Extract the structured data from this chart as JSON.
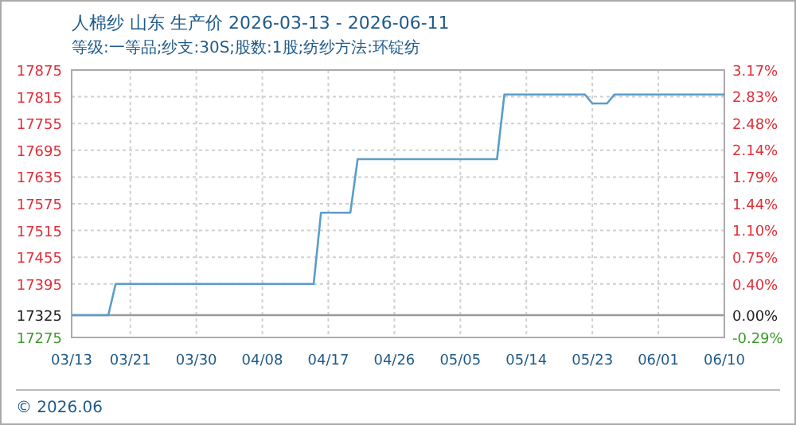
{
  "chart_data": {
    "type": "line",
    "title": "人棉纱 山东 生产价 2026-03-13 - 2026-06-11",
    "subtitle": "等级:一等品;纱支:30S;股数:1股;纺纱方法:环锭纺",
    "x": [
      "2026-03-13",
      "2026-03-18",
      "2026-03-19",
      "2026-04-15",
      "2026-04-16",
      "2026-04-20",
      "2026-04-21",
      "2026-05-10",
      "2026-05-11",
      "2026-05-22",
      "2026-05-23",
      "2026-05-25",
      "2026-05-26",
      "2026-06-10"
    ],
    "series": [
      {
        "color": "#5b9dc9",
        "values": [
          17325,
          17325,
          17395,
          17395,
          17555,
          17555,
          17675,
          17675,
          17820,
          17820,
          17800,
          17800,
          17820,
          17820
        ]
      }
    ],
    "xlim": [
      "2026-03-13",
      "2026-06-10"
    ],
    "xticks": [
      {
        "value": "2026-03-13",
        "label": "03/13"
      },
      {
        "value": "2026-03-21",
        "label": "03/21"
      },
      {
        "value": "2026-03-30",
        "label": "03/30"
      },
      {
        "value": "2026-04-08",
        "label": "04/08"
      },
      {
        "value": "2026-04-17",
        "label": "04/17"
      },
      {
        "value": "2026-04-26",
        "label": "04/26"
      },
      {
        "value": "2026-05-05",
        "label": "05/05"
      },
      {
        "value": "2026-05-14",
        "label": "05/14"
      },
      {
        "value": "2026-05-23",
        "label": "05/23"
      },
      {
        "value": "2026-06-01",
        "label": "06/01"
      },
      {
        "value": "2026-06-10",
        "label": "06/10"
      }
    ],
    "ylim": [
      17275,
      17875
    ],
    "yticks": [
      17275,
      17325,
      17395,
      17455,
      17515,
      17575,
      17635,
      17695,
      17755,
      17815,
      17875
    ],
    "y2lim": [
      -0.29,
      3.17
    ],
    "y2ticks": [
      {
        "value": -0.29,
        "label": "-0.29%"
      },
      {
        "value": 0,
        "label": "0.00%"
      },
      {
        "value": 0.4,
        "label": "0.40%"
      },
      {
        "value": 0.75,
        "label": "0.75%"
      },
      {
        "value": 1.1,
        "label": "1.10%"
      },
      {
        "value": 1.44,
        "label": "1.44%"
      },
      {
        "value": 1.79,
        "label": "1.79%"
      },
      {
        "value": 2.14,
        "label": "2.14%"
      },
      {
        "value": 2.48,
        "label": "2.48%"
      },
      {
        "value": 2.83,
        "label": "2.83%"
      },
      {
        "value": 3.17,
        "label": "3.17%"
      }
    ],
    "ref_lines": [
      {
        "axis": "y",
        "value": 17325,
        "color": "#999999"
      }
    ],
    "grid": true,
    "line_style": "solid",
    "annotations": [
      "© 2026.06"
    ]
  }
}
